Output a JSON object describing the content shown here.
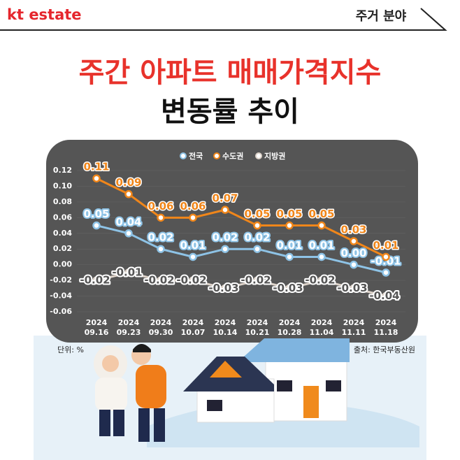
{
  "brand": "kt estate",
  "section": "주거 분야",
  "chart_data": {
    "type": "line",
    "title": "주간 아파트 매매가격지수",
    "subtitle": "변동률 추이",
    "unit": "단위: %",
    "source": "출처: 한국부동산원",
    "categories": [
      "2024 09.16",
      "2024 09.23",
      "2024 09.30",
      "2024 10.07",
      "2024 10.14",
      "2024 10.21",
      "2024 10.28",
      "2024 11.04",
      "2024 11.11",
      "2024 11.18"
    ],
    "series": [
      {
        "name": "전국",
        "color": "#8ec3e6",
        "values": [
          0.05,
          0.04,
          0.02,
          0.01,
          0.02,
          0.02,
          0.01,
          0.01,
          0,
          -0.01
        ],
        "value_labels": [
          "0.05",
          "0.04",
          "0.02",
          "0.01",
          "0.02",
          "0.02",
          "0.01",
          "0.01",
          "0.00",
          "-0.01"
        ]
      },
      {
        "name": "수도권",
        "color": "#f0861a",
        "values": [
          0.11,
          0.09,
          0.06,
          0.06,
          0.07,
          0.05,
          0.05,
          0.05,
          0.03,
          0.01
        ],
        "value_labels": [
          "0.11",
          "0.09",
          "0.06",
          "0.06",
          "0.07",
          "0.05",
          "0.05",
          "0.05",
          "0.03",
          "0.01"
        ]
      },
      {
        "name": "지방권",
        "color": "#ddd3ca",
        "values": [
          -0.02,
          -0.01,
          -0.02,
          -0.02,
          -0.03,
          -0.02,
          -0.03,
          -0.02,
          -0.03,
          -0.04
        ],
        "value_labels": [
          "-0.02",
          "-0.01",
          "-0.02",
          "-0.02",
          "-0.03",
          "-0.02",
          "-0.03",
          "-0.02",
          "-0.03",
          "-0.04"
        ]
      }
    ],
    "ylim": [
      -0.06,
      0.12
    ],
    "yticks": [
      0.12,
      {
        "value": 0.1,
        "label": "0.10"
      },
      0.08,
      0.06,
      0.04,
      0.02,
      {
        "value": 0,
        "label": "0.00"
      },
      -0.02,
      -0.04,
      -0.06
    ],
    "legend": "top"
  }
}
